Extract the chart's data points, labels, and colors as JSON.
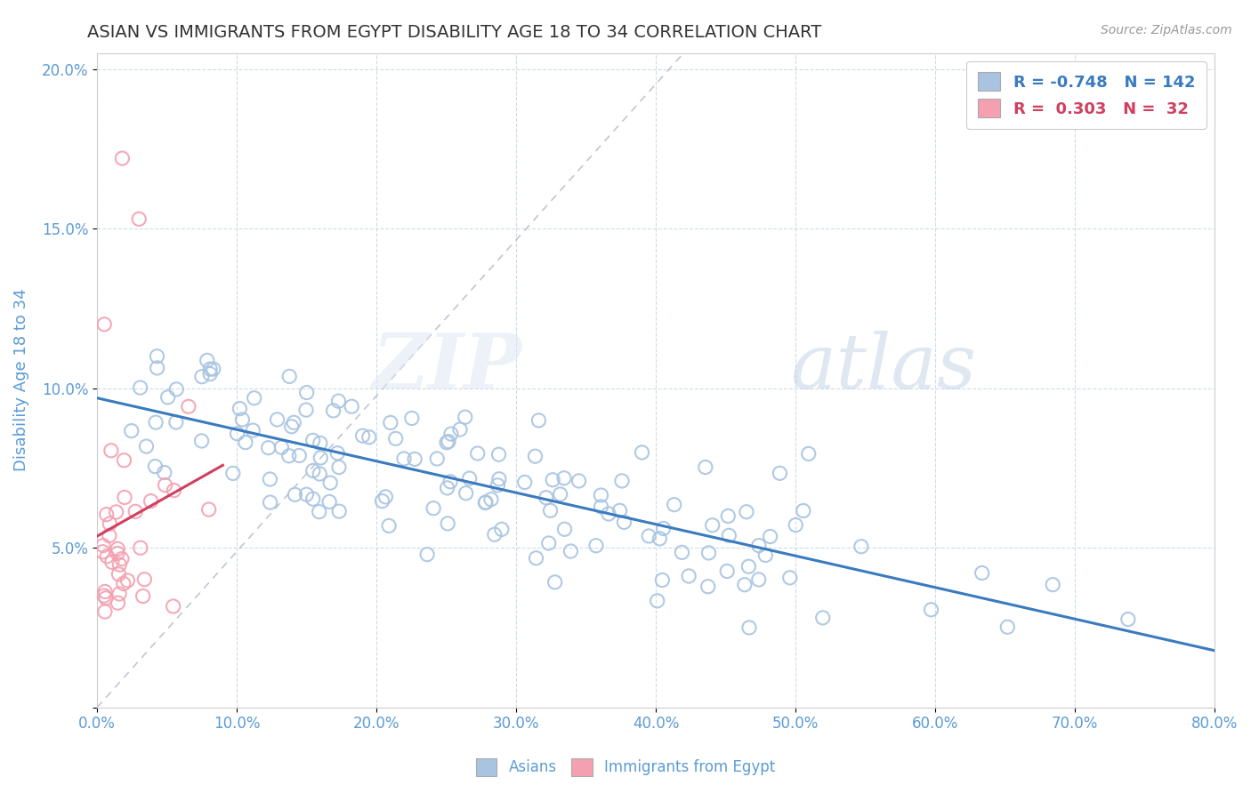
{
  "title": "ASIAN VS IMMIGRANTS FROM EGYPT DISABILITY AGE 18 TO 34 CORRELATION CHART",
  "source": "Source: ZipAtlas.com",
  "xlabel": "",
  "ylabel": "Disability Age 18 to 34",
  "xlim": [
    0.0,
    0.8
  ],
  "ylim": [
    0.0,
    0.205
  ],
  "xticks": [
    0.0,
    0.1,
    0.2,
    0.3,
    0.4,
    0.5,
    0.6,
    0.7,
    0.8
  ],
  "yticks": [
    0.0,
    0.05,
    0.1,
    0.15,
    0.2
  ],
  "asian_color": "#a8c4e0",
  "egypt_color": "#f4a0b0",
  "asian_line_color": "#3a7bbf",
  "egypt_line_color": "#d04060",
  "legend_box_asian": "#a8c4e0",
  "legend_box_egypt": "#f4a0b0",
  "R_asian": -0.748,
  "N_asian": 142,
  "R_egypt": 0.303,
  "N_egypt": 32,
  "watermark_zip": "ZIP",
  "watermark_atlas": "atlas",
  "title_fontsize": 14,
  "axis_label_color": "#5b9bd5",
  "tick_label_color": "#5b9bd5",
  "grid_color": "#c8d8e8",
  "background_color": "#ffffff"
}
